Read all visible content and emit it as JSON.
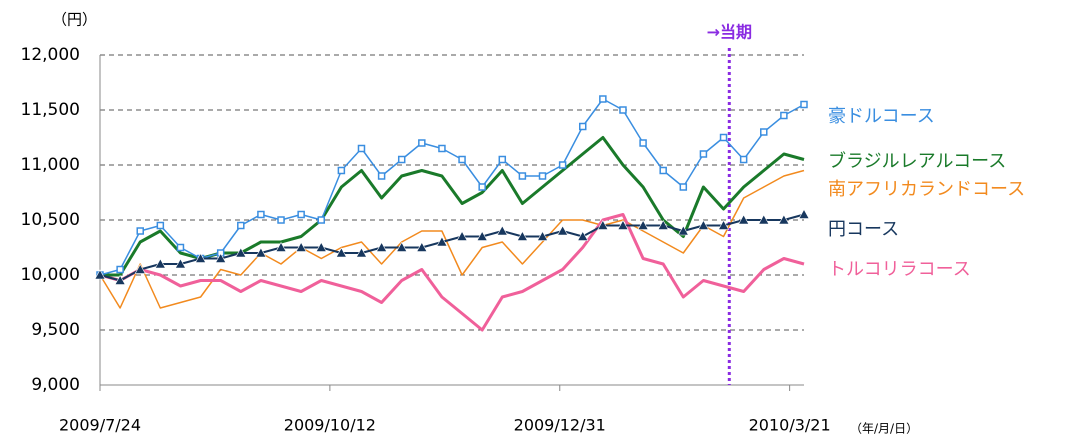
{
  "chart_data": {
    "type": "line",
    "y_unit": "（円）",
    "x_unit": "（年/月/日）",
    "x": [
      "2009/7/24",
      "2009/7/31",
      "2009/8/7",
      "2009/8/14",
      "2009/8/21",
      "2009/8/28",
      "2009/9/4",
      "2009/9/11",
      "2009/9/18",
      "2009/9/25",
      "2009/10/2",
      "2009/10/9",
      "2009/10/16",
      "2009/10/23",
      "2009/10/30",
      "2009/11/6",
      "2009/11/13",
      "2009/11/20",
      "2009/11/27",
      "2009/12/4",
      "2009/12/11",
      "2009/12/18",
      "2009/12/25",
      "2010/1/1",
      "2010/1/8",
      "2010/1/15",
      "2010/1/22",
      "2010/1/29",
      "2010/2/5",
      "2010/2/12",
      "2010/2/19",
      "2010/2/26",
      "2010/3/5",
      "2010/3/12",
      "2010/3/19",
      "2010/3/26"
    ],
    "xlim": [
      "2009/7/24",
      "2010/3/26"
    ],
    "xticks": [
      "2009/7/24",
      "2009/10/12",
      "2009/12/31",
      "2010/3/21"
    ],
    "ylim": [
      9000,
      12000
    ],
    "yticks": [
      {
        "value": 9000,
        "label": "9,000"
      },
      {
        "value": 9500,
        "label": "9,500"
      },
      {
        "value": 10000,
        "label": "10,000"
      },
      {
        "value": 10500,
        "label": "10,500"
      },
      {
        "value": 11000,
        "label": "11,000"
      },
      {
        "value": 11500,
        "label": "11,500"
      },
      {
        "value": 12000,
        "label": "12,000"
      }
    ],
    "grid": true,
    "current_marker": {
      "label": "→当期",
      "x": "2010/2/28",
      "color": "#8a2be2"
    },
    "series": [
      {
        "name": "南アフリカランドコース",
        "color": "#f28a1e",
        "width": 1.5,
        "marker": "none",
        "values": [
          10000,
          9700,
          10100,
          9700,
          9750,
          9800,
          10050,
          10000,
          10200,
          10100,
          10250,
          10150,
          10250,
          10300,
          10100,
          10300,
          10400,
          10400,
          10000,
          10250,
          10300,
          10100,
          10300,
          10500,
          10500,
          10450,
          10500,
          10400,
          10300,
          10200,
          10450,
          10350,
          10700,
          10800,
          10900,
          10950
        ]
      },
      {
        "name": "トルコリラコース",
        "color": "#f0609a",
        "width": 3,
        "marker": "none",
        "values": [
          10000,
          9950,
          10050,
          10000,
          9900,
          9950,
          9950,
          9850,
          9950,
          9900,
          9850,
          9950,
          9900,
          9850,
          9750,
          9950,
          10050,
          9800,
          9650,
          9500,
          9800,
          9850,
          9950,
          10050,
          10250,
          10500,
          10550,
          10150,
          10100,
          9800,
          9950,
          9900,
          9850,
          10050,
          10150,
          10100
        ]
      },
      {
        "name": "ブラジルレアルコース",
        "color": "#1a7a2a",
        "width": 3,
        "marker": "none",
        "values": [
          10000,
          10000,
          10300,
          10400,
          10200,
          10150,
          10200,
          10200,
          10300,
          10300,
          10350,
          10500,
          10800,
          10950,
          10700,
          10900,
          10950,
          10900,
          10650,
          10750,
          10950,
          10650,
          10800,
          10950,
          11100,
          11250,
          11000,
          10800,
          10500,
          10350,
          10800,
          10600,
          10800,
          10950,
          11100,
          11050
        ]
      },
      {
        "name": "豪ドルコース",
        "color": "#3a8ee0",
        "width": 1.5,
        "marker": "square",
        "values": [
          10000,
          10050,
          10400,
          10450,
          10250,
          10150,
          10200,
          10450,
          10550,
          10500,
          10550,
          10500,
          10950,
          11150,
          10900,
          11050,
          11200,
          11150,
          11050,
          10800,
          11050,
          10900,
          10900,
          11000,
          11350,
          11600,
          11500,
          11200,
          10950,
          10800,
          11100,
          11250,
          11050,
          11300,
          11450,
          11550
        ]
      },
      {
        "name": "円コース",
        "color": "#17375e",
        "width": 2,
        "marker": "triangle",
        "values": [
          10000,
          9950,
          10050,
          10100,
          10100,
          10150,
          10150,
          10200,
          10200,
          10250,
          10250,
          10250,
          10200,
          10200,
          10250,
          10250,
          10250,
          10300,
          10350,
          10350,
          10400,
          10350,
          10350,
          10400,
          10350,
          10450,
          10450,
          10450,
          10450,
          10400,
          10450,
          10450,
          10500,
          10500,
          10500,
          10550
        ]
      }
    ],
    "legend_order": [
      3,
      2,
      0,
      4,
      1
    ]
  }
}
